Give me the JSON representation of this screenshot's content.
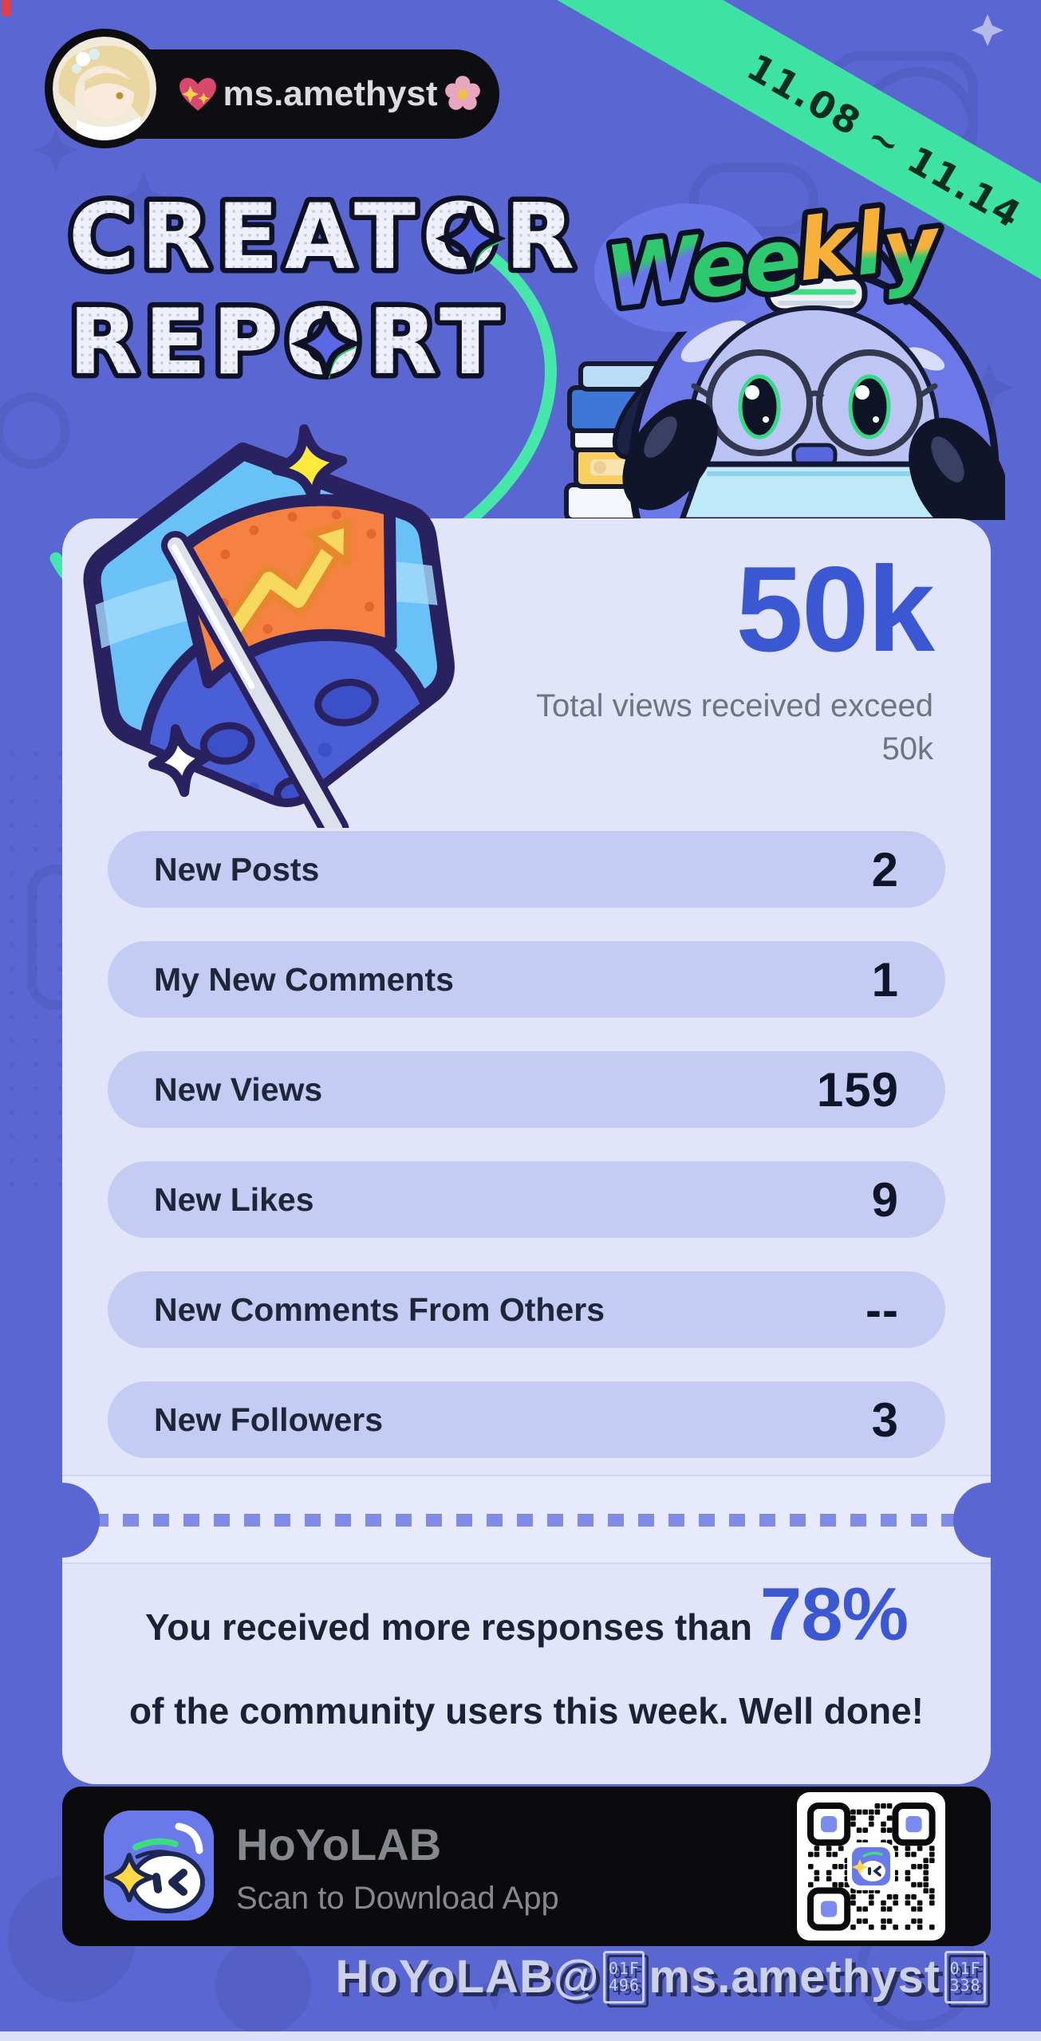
{
  "meta": {
    "date_range": "11.08 ~ 11.14"
  },
  "user_badge": {
    "username": "ms.amethyst",
    "emoji_left": "sparkling-heart",
    "emoji_right": "cherry-blossom"
  },
  "title": {
    "line1": "CREATOR",
    "line2": "REPORT",
    "weekly": "Weekly",
    "weekly_letters": [
      {
        "ch": "W",
        "top": "#2ec96e",
        "bottom": "#6976e8"
      },
      {
        "ch": "e",
        "top": "#2ec96e",
        "bottom": "#2ec96e"
      },
      {
        "ch": "e",
        "top": "#2ec96e",
        "bottom": "#2ec96e"
      },
      {
        "ch": "k",
        "top": "#f7b13a",
        "bottom": "#f7b13a"
      },
      {
        "ch": "l",
        "top": "#f7b13a",
        "bottom": "#2ec96e"
      },
      {
        "ch": "y",
        "top": "#f7b13a",
        "bottom": "#2ec96e"
      }
    ]
  },
  "highlight": {
    "value": "50k",
    "description_line1": "Total views received exceed",
    "description_line2": "50k"
  },
  "stats": [
    {
      "label": "New Posts",
      "value": "2"
    },
    {
      "label": "My New Comments",
      "value": "1"
    },
    {
      "label": "New Views",
      "value": "159"
    },
    {
      "label": "New Likes",
      "value": "9"
    },
    {
      "label": "New Comments From Others",
      "value": "--"
    },
    {
      "label": "New Followers",
      "value": "3"
    }
  ],
  "summary": {
    "prefix": "You received more responses than",
    "percent": "78%",
    "suffix": "of the community users this week. Well done!"
  },
  "footer": {
    "app_name": "HoYoLAB",
    "scan_text": "Scan to Download App"
  },
  "watermark": {
    "prefix": "HoYoLAB@",
    "tofu1_top": "01F",
    "tofu1_bottom": "496",
    "middle": "ms.amethyst",
    "tofu2_top": "01F",
    "tofu2_bottom": "338"
  },
  "colors": {
    "background": "#5a66d1",
    "ribbon_green": "#3ee3a3",
    "accent_blue": "#3c57d2",
    "card": "#e2e5f9",
    "row_pill": "#c5ccf4",
    "weekly_green": "#2ec96e",
    "weekly_orange": "#f7b13a",
    "footer_black": "#0b0b0e"
  }
}
